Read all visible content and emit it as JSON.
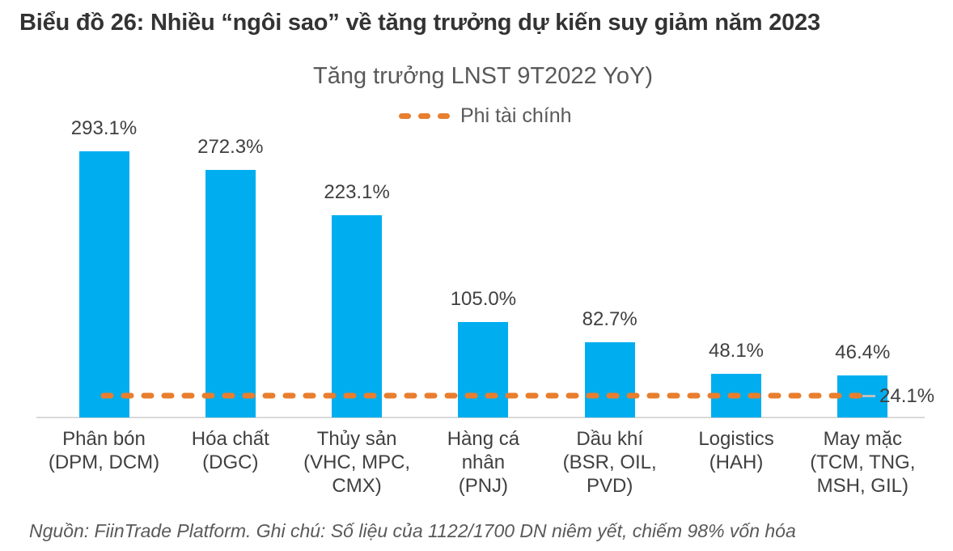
{
  "title": "Biểu đồ 26: Nhiều “ngôi sao” về tăng trưởng dự kiến suy giảm năm 2023",
  "chart": {
    "title": "Tăng trưởng LNST 9T2022 YoY)",
    "legend_label": "Phi tài chính",
    "reference_label": "24.1%"
  },
  "chart_data": {
    "type": "bar",
    "title": "Tăng trưởng LNST 9T2022 YoY)",
    "categories": [
      "Phân bón (DPM, DCM)",
      "Hóa chất (DGC)",
      "Thủy sản (VHC, MPC, CMX)",
      "Hàng cá nhân (PNJ)",
      "Dầu khí (BSR, OIL, PVD)",
      "Logistics (HAH)",
      "May mặc (TCM, TNG, MSH, GIL)"
    ],
    "categories_wrapped": [
      "Phân bón\n(DPM, DCM)",
      "Hóa chất\n(DGC)",
      "Thủy sản\n(VHC, MPC,\nCMX)",
      "Hàng cá\nnhân\n(PNJ)",
      "Dầu khí\n(BSR, OIL,\nPVD)",
      "Logistics\n(HAH)",
      "May mặc\n(TCM, TNG,\nMSH, GIL)"
    ],
    "values": [
      293.1,
      272.3,
      223.1,
      105.0,
      82.7,
      48.1,
      46.4
    ],
    "value_labels": [
      "293.1%",
      "272.3%",
      "223.1%",
      "105.0%",
      "82.7%",
      "48.1%",
      "46.4%"
    ],
    "reference_line": {
      "name": "Phi tài chính",
      "value": 24.1,
      "label": "24.1%",
      "style": "dashed",
      "color": "#E87E2E"
    },
    "legend": {
      "position": "top-center",
      "entries": [
        "Phi tài chính"
      ]
    },
    "bar_color": "#00AEEF",
    "grid": false,
    "y_axis_visible": false,
    "ylim": [
      0,
      330
    ],
    "unit": "%"
  },
  "colors": {
    "bar": "#00AEEF",
    "reference_dash": "#E87E2E",
    "baseline": "#D9D9D9",
    "title_text": "#333333",
    "chart_text": "#595959",
    "label_text": "#404040"
  },
  "footer": "Nguồn: FiinTrade Platform. Ghi chú: Số liệu của 1122/1700 DN niêm yết, chiếm 98% vốn hóa"
}
